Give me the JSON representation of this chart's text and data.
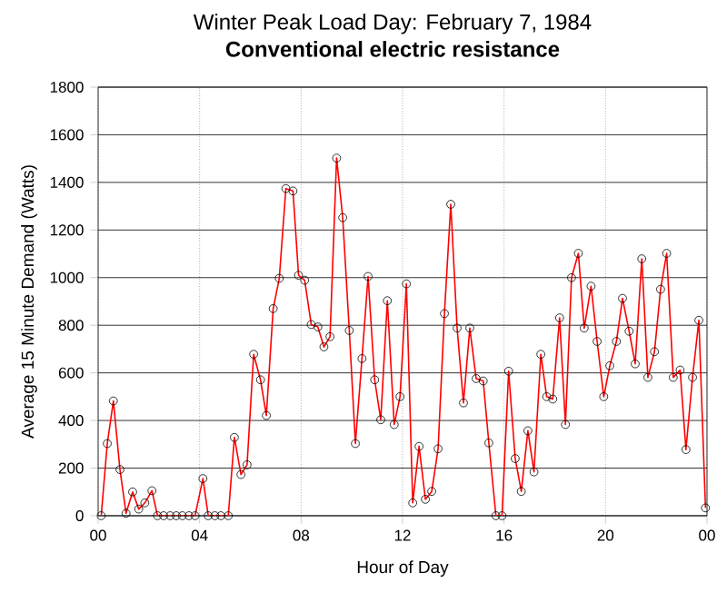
{
  "chart_data": {
    "type": "line",
    "title": "Winter Peak Load Day: February 7, 1984",
    "subtitle": "Conventional electric resistance",
    "xlabel": "Hour of Day",
    "ylabel": "Average 15 Minute Demand (Watts)",
    "x": [
      0.12,
      0.36,
      0.6,
      0.86,
      1.1,
      1.36,
      1.6,
      1.84,
      2.12,
      2.34,
      2.58,
      2.84,
      3.08,
      3.32,
      3.58,
      3.82,
      4.13,
      4.34,
      4.6,
      4.84,
      5.13,
      5.37,
      5.63,
      5.87,
      6.13,
      6.4,
      6.63,
      6.9,
      7.14,
      7.4,
      7.68,
      7.9,
      8.14,
      8.4,
      8.66,
      8.9,
      9.14,
      9.4,
      9.64,
      9.9,
      10.14,
      10.4,
      10.64,
      10.9,
      11.14,
      11.4,
      11.67,
      11.9,
      12.15,
      12.4,
      12.65,
      12.9,
      13.15,
      13.4,
      13.65,
      13.9,
      14.15,
      14.4,
      14.65,
      14.9,
      15.18,
      15.4,
      15.68,
      15.92,
      16.18,
      16.44,
      16.68,
      16.94,
      17.18,
      17.45,
      17.68,
      17.92,
      18.19,
      18.42,
      18.66,
      18.93,
      19.16,
      19.43,
      19.67,
      19.93,
      20.17,
      20.43,
      20.67,
      20.93,
      21.17,
      21.43,
      21.67,
      21.93,
      22.17,
      22.41,
      22.67,
      22.94,
      23.17,
      23.43,
      23.68,
      23.94
    ],
    "series": [
      {
        "color": "#ff0000",
        "values": [
          0,
          303,
          482,
          194,
          10,
          100,
          28,
          54,
          105,
          0,
          0,
          0,
          0,
          0,
          0,
          0,
          156,
          0,
          0,
          0,
          0,
          329,
          173,
          214,
          678,
          571,
          421,
          870,
          997,
          1374,
          1364,
          1010,
          989,
          803,
          793,
          709,
          752,
          1502,
          1252,
          778,
          303,
          660,
          1005,
          571,
          403,
          903,
          383,
          500,
          974,
          54,
          291,
          69,
          102,
          281,
          849,
          1308,
          788,
          474,
          788,
          576,
          566,
          306,
          0,
          0,
          607,
          240,
          102,
          357,
          184,
          678,
          500,
          490,
          831,
          383,
          1000,
          1102,
          788,
          964,
          732,
          500,
          630,
          732,
          913,
          775,
          638,
          1079,
          581,
          689,
          951,
          1102,
          581,
          612,
          278,
          581,
          821,
          33
        ]
      }
    ],
    "xlim": [
      0,
      24
    ],
    "xticks": [
      {
        "value": 0,
        "label": "00"
      },
      {
        "value": 4,
        "label": "04"
      },
      {
        "value": 8,
        "label": "08"
      },
      {
        "value": 12,
        "label": "12"
      },
      {
        "value": 16,
        "label": "16"
      },
      {
        "value": 20,
        "label": "20"
      },
      {
        "value": 24,
        "label": "00"
      }
    ],
    "ylim": [
      0,
      1800
    ],
    "yticks": [
      0,
      200,
      400,
      600,
      800,
      1000,
      1200,
      1400,
      1600,
      1800
    ],
    "grid": true,
    "marker": "circle",
    "line_style": "solid"
  }
}
